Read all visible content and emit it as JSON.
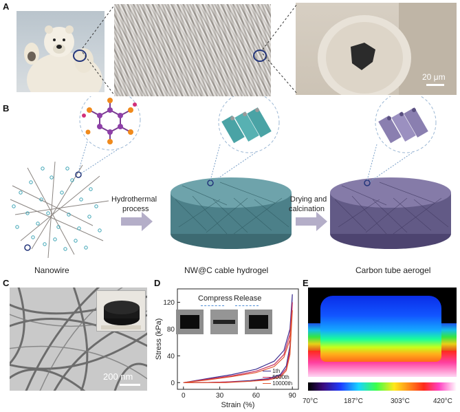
{
  "panel_a": {
    "letter": "A",
    "scale_bar": "20 μm"
  },
  "panel_b": {
    "letter": "B",
    "arrow1": [
      "Hydrothermal",
      "process"
    ],
    "arrow2": [
      "Drying and",
      "calcination"
    ],
    "labels": [
      "Nanowire",
      "NW@C cable hydrogel",
      "Carbon tube aerogel"
    ]
  },
  "panel_c": {
    "letter": "C",
    "scale_bar": "200 nm"
  },
  "panel_d": {
    "letter": "D",
    "compress": "Compress",
    "release": "Release"
  },
  "panel_e": {
    "letter": "E",
    "scale_labels": [
      "70°C",
      "187°C",
      "303°C",
      "420°C"
    ]
  },
  "chart_data": {
    "type": "line",
    "xlabel": "Strain (%)",
    "ylabel": "Stress (kPa)",
    "xlim": [
      -5,
      95
    ],
    "ylim": [
      -10,
      140
    ],
    "xticks": [
      "0",
      "30",
      "60",
      "90"
    ],
    "yticks": [
      "0",
      "40",
      "80",
      "120"
    ],
    "series": [
      {
        "name": "1th",
        "color": "#3b2d8f",
        "loading": [
          [
            0,
            0
          ],
          [
            20,
            6
          ],
          [
            40,
            12
          ],
          [
            60,
            20
          ],
          [
            75,
            32
          ],
          [
            83,
            48
          ],
          [
            88,
            80
          ],
          [
            90,
            132
          ]
        ],
        "unloading": [
          [
            90,
            132
          ],
          [
            88,
            55
          ],
          [
            85,
            25
          ],
          [
            80,
            12
          ],
          [
            70,
            6
          ],
          [
            55,
            3
          ],
          [
            35,
            1
          ],
          [
            15,
            0
          ],
          [
            0,
            0
          ]
        ]
      },
      {
        "name": "5000th",
        "color": "#c62a5a",
        "loading": [
          [
            0,
            0
          ],
          [
            20,
            5
          ],
          [
            40,
            10
          ],
          [
            60,
            17
          ],
          [
            75,
            27
          ],
          [
            83,
            42
          ],
          [
            88,
            72
          ],
          [
            90,
            120
          ]
        ],
        "unloading": [
          [
            90,
            120
          ],
          [
            88,
            48
          ],
          [
            85,
            21
          ],
          [
            80,
            10
          ],
          [
            70,
            5
          ],
          [
            55,
            2
          ],
          [
            35,
            1
          ],
          [
            15,
            0
          ],
          [
            0,
            0
          ]
        ]
      },
      {
        "name": "10000th",
        "color": "#e0552e",
        "loading": [
          [
            0,
            0
          ],
          [
            20,
            4
          ],
          [
            40,
            9
          ],
          [
            60,
            15
          ],
          [
            75,
            24
          ],
          [
            83,
            38
          ],
          [
            88,
            64
          ],
          [
            90,
            108
          ]
        ],
        "unloading": [
          [
            90,
            108
          ],
          [
            88,
            42
          ],
          [
            85,
            18
          ],
          [
            80,
            8
          ],
          [
            70,
            4
          ],
          [
            55,
            2
          ],
          [
            35,
            0
          ],
          [
            15,
            0
          ],
          [
            0,
            0
          ]
        ]
      }
    ]
  }
}
